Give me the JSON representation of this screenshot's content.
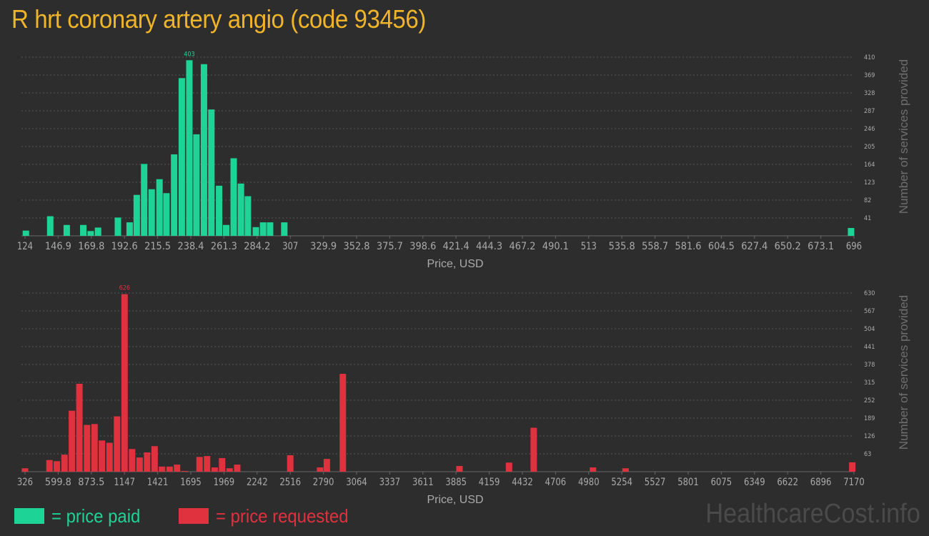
{
  "title": "R hrt coronary artery angio (code 93456)",
  "watermark": "HealthcareCost.info",
  "legend": {
    "paid_label": "= price paid",
    "requested_label": "= price requested"
  },
  "colors": {
    "background": "#2d2d2d",
    "title": "#f0b429",
    "paid": "#1dd396",
    "requested": "#e0313f",
    "axis_text": "#aaaaaa",
    "grid": "#555555",
    "watermark": "#4a4a4a"
  },
  "chart_data": [
    {
      "type": "bar",
      "name": "price paid",
      "xlabel": "Price, USD",
      "ylabel": "Number of services provided",
      "xlim": [
        124,
        696
      ],
      "ylim": [
        0,
        410
      ],
      "x_ticks": [
        "124",
        "146.9",
        "169.8",
        "192.6",
        "215.5",
        "238.4",
        "261.3",
        "284.2",
        "307",
        "329.9",
        "352.8",
        "375.7",
        "398.6",
        "421.4",
        "444.3",
        "467.2",
        "490.1",
        "513",
        "535.8",
        "558.7",
        "581.6",
        "604.5",
        "627.4",
        "650.2",
        "673.1",
        "696"
      ],
      "y_ticks": [
        41,
        82,
        123,
        164,
        205,
        246,
        287,
        328,
        369,
        410
      ],
      "peak_label": "403",
      "grid": true,
      "x": [
        124.6,
        141.4,
        152.8,
        164.2,
        169.3,
        174.4,
        188.1,
        196.2,
        201.1,
        206.2,
        211.4,
        216.8,
        221.6,
        226.9,
        232.2,
        237.4,
        242.3,
        247.5,
        252.6,
        257.9,
        262.8,
        268.0,
        273.0,
        277.8,
        283.3,
        288.3,
        293.1,
        302.9,
        694.0
      ],
      "values": [
        12,
        45,
        25,
        25,
        11,
        19,
        42,
        31,
        94,
        165,
        107,
        130,
        98,
        187,
        362,
        403,
        233,
        394,
        290,
        115,
        25,
        178,
        120,
        91,
        20,
        31,
        31,
        31,
        18
      ]
    },
    {
      "type": "bar",
      "name": "price requested",
      "xlabel": "Price, USD",
      "ylabel": "Number of services provided",
      "xlim": [
        326,
        7170
      ],
      "ylim": [
        0,
        630
      ],
      "x_ticks": [
        "326",
        "599.8",
        "873.5",
        "1147",
        "1421",
        "1695",
        "1969",
        "2242",
        "2516",
        "2790",
        "3064",
        "3337",
        "3611",
        "3885",
        "4159",
        "4432",
        "4706",
        "4980",
        "5254",
        "5527",
        "5801",
        "6075",
        "6349",
        "6622",
        "6896",
        "7170"
      ],
      "y_ticks": [
        63,
        126,
        189,
        252,
        315,
        378,
        441,
        504,
        567,
        630
      ],
      "peak_label": "626",
      "grid": true,
      "x": [
        326,
        528,
        589,
        652,
        713,
        775,
        838,
        900,
        961,
        1024,
        1086,
        1148,
        1210,
        1272,
        1334,
        1396,
        1457,
        1520,
        1581,
        1644,
        1767,
        1829,
        1892,
        1953,
        2015,
        2078,
        2516,
        2762,
        2818,
        2950,
        3913,
        4322,
        4526,
        5015,
        5284,
        7156
      ],
      "values": [
        12,
        41,
        37,
        60,
        215,
        310,
        165,
        168,
        110,
        102,
        195,
        626,
        80,
        50,
        68,
        90,
        18,
        18,
        25,
        2,
        52,
        55,
        15,
        48,
        12,
        25,
        58,
        15,
        45,
        345,
        20,
        32,
        155,
        15,
        12,
        33
      ]
    }
  ]
}
